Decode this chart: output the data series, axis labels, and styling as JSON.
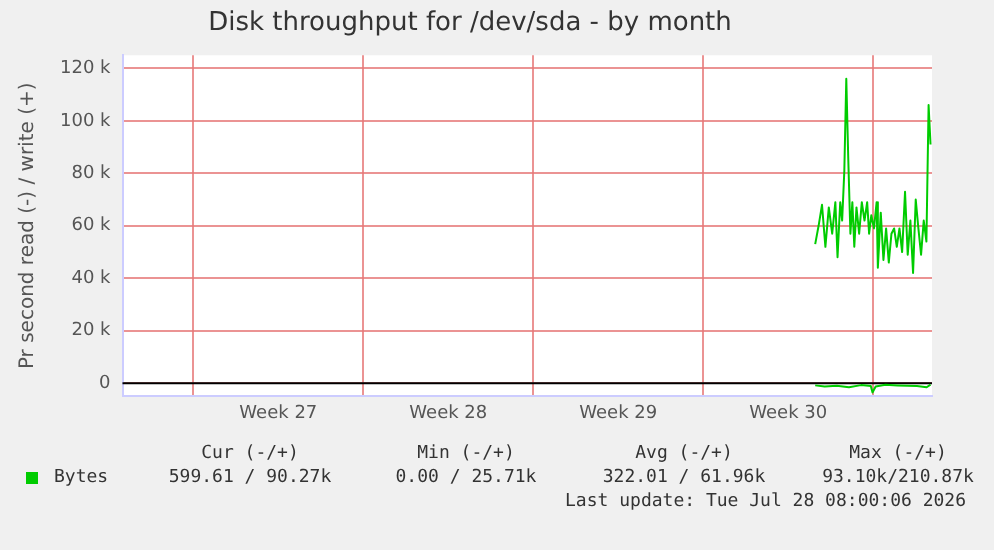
{
  "chart_data": {
    "type": "line",
    "title": "Disk throughput for /dev/sda - by month",
    "ylabel": "Pr second read (-) / write (+)",
    "xlim": [
      "2026-06-25T02:00",
      "2026-07-28T10:05"
    ],
    "xticks": [
      {
        "value": "2026-06-28",
        "label": null
      },
      {
        "value": "2026-07-01T12:00",
        "label": "Week 27"
      },
      {
        "value": "2026-07-05",
        "label": null
      },
      {
        "value": "2026-07-08T12:00",
        "label": "Week 28"
      },
      {
        "value": "2026-07-12",
        "label": null
      },
      {
        "value": "2026-07-15T12:00",
        "label": "Week 29"
      },
      {
        "value": "2026-07-19",
        "label": null
      },
      {
        "value": "2026-07-22T12:00",
        "label": "Week 30"
      },
      {
        "value": "2026-07-26",
        "label": null
      }
    ],
    "ylim": [
      -5000,
      125000
    ],
    "yticks": [
      {
        "value": 0,
        "label": "0"
      },
      {
        "value": 20000,
        "label": "20 k"
      },
      {
        "value": 40000,
        "label": "40 k"
      },
      {
        "value": 60000,
        "label": "60 k"
      },
      {
        "value": 80000,
        "label": "80 k"
      },
      {
        "value": 100000,
        "label": "100 k"
      },
      {
        "value": 120000,
        "label": "120 k"
      }
    ],
    "grid": true,
    "legend": "bottom left",
    "marker": "none",
    "line_style": "solid",
    "ref_lines": [
      {
        "axis": "y",
        "value": 0,
        "color": "#000000"
      }
    ],
    "series": [
      {
        "name": "Bytes",
        "color": "#00cc00",
        "x": [
          "2026-07-23T14:38",
          "2026-07-23T18:00",
          "2026-07-23T21:22",
          "2026-07-24T00:43",
          "2026-07-24T04:05",
          "2026-07-24T07:26",
          "2026-07-24T10:34",
          "2026-07-24T12:43",
          "2026-07-24T15:22",
          "2026-07-24T17:17",
          "2026-07-24T19:26",
          "2026-07-24T21:22",
          "2026-07-24T23:17",
          "2026-07-25T01:26",
          "2026-07-25T03:22",
          "2026-07-25T05:17",
          "2026-07-25T07:26",
          "2026-07-25T10:05",
          "2026-07-25T12:43",
          "2026-07-25T15:22",
          "2026-07-25T18:00",
          "2026-07-25T19:55",
          "2026-07-25T22:05",
          "2026-07-26T00:43",
          "2026-07-26T03:22",
          "2026-07-26T04:34",
          "2026-07-26T07:26",
          "2026-07-26T10:05",
          "2026-07-26T12:43",
          "2026-07-26T15:22",
          "2026-07-26T18:00",
          "2026-07-26T20:38",
          "2026-07-26T23:17",
          "2026-07-27T01:55",
          "2026-07-27T04:34",
          "2026-07-27T07:26",
          "2026-07-27T10:05",
          "2026-07-27T12:43",
          "2026-07-27T15:22",
          "2026-07-27T18:00",
          "2026-07-27T20:38",
          "2026-07-27T23:17",
          "2026-07-28T01:55",
          "2026-07-28T04:34",
          "2026-07-28T06:43",
          "2026-07-28T08:38"
        ],
        "values": [
          53000,
          60000,
          68000,
          52000,
          67000,
          57000,
          69000,
          48000,
          69000,
          62000,
          81000,
          116000,
          86000,
          57000,
          69000,
          52000,
          67000,
          57000,
          69000,
          62000,
          69000,
          57000,
          64000,
          59000,
          69000,
          44000,
          65000,
          47000,
          59000,
          46000,
          57000,
          59000,
          52000,
          59000,
          50000,
          73000,
          49000,
          62000,
          42000,
          70000,
          59000,
          49000,
          62000,
          54000,
          106000,
          91000
        ]
      },
      {
        "color": "#00cc00",
        "x": [
          "2026-07-23T14:38",
          "2026-07-24T00:00",
          "2026-07-24T12:00",
          "2026-07-25T00:00",
          "2026-07-25T12:00",
          "2026-07-25T21:36",
          "2026-07-25T23:17",
          "2026-07-26T02:24",
          "2026-07-26T12:00",
          "2026-07-27T00:00",
          "2026-07-27T19:12",
          "2026-07-28T04:48",
          "2026-07-28T08:38"
        ],
        "values": [
          -800,
          -1200,
          -900,
          -1500,
          -700,
          -1000,
          -3500,
          -1200,
          -600,
          -800,
          -1000,
          -1500,
          -500
        ]
      }
    ],
    "annotations": [
      "Cur (-/+)",
      "Min (-/+)",
      "Avg (-/+)",
      "Max (-/+)",
      "599.61 / 90.27k",
      "0.00 / 25.71k",
      "322.01 / 61.96k",
      "93.10k/210.87k",
      "Last update: Tue Jul 28 08:00:06 2026"
    ]
  }
}
